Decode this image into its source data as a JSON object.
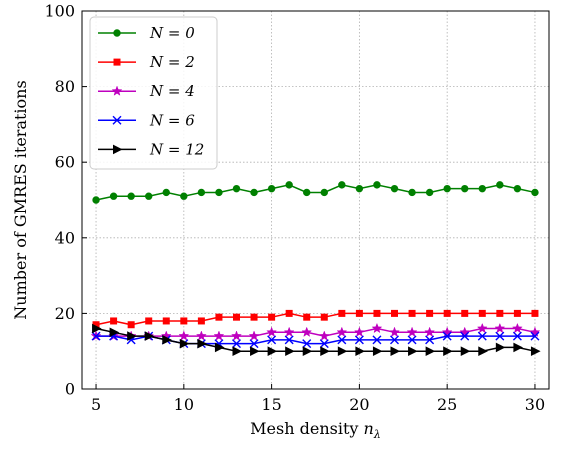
{
  "chart_data": {
    "type": "line",
    "title": "",
    "xlabel": "Mesh density nλ",
    "xlabel_main": "Mesh density ",
    "xlabel_var": "n",
    "xlabel_sub": "λ",
    "ylabel": "Number of GMRES iterations",
    "xlim": [
      4.2,
      30.8
    ],
    "ylim": [
      0,
      100
    ],
    "xticks": [
      5,
      10,
      15,
      20,
      25,
      30
    ],
    "yticks": [
      0,
      20,
      40,
      60,
      80,
      100
    ],
    "grid": true,
    "legend_position": "top-left",
    "x": [
      5,
      6,
      7,
      8,
      9,
      10,
      11,
      12,
      13,
      14,
      15,
      16,
      17,
      18,
      19,
      20,
      21,
      22,
      23,
      24,
      25,
      26,
      27,
      28,
      29,
      30
    ],
    "series": [
      {
        "name": "N = 0",
        "color": "#008000",
        "marker": "circle",
        "values": [
          50,
          51,
          51,
          51,
          52,
          51,
          52,
          52,
          53,
          52,
          53,
          54,
          52,
          52,
          54,
          53,
          54,
          53,
          52,
          52,
          53,
          53,
          53,
          54,
          53,
          52
        ]
      },
      {
        "name": "N = 2",
        "color": "#ff0000",
        "marker": "square",
        "values": [
          17,
          18,
          17,
          18,
          18,
          18,
          18,
          19,
          19,
          19,
          19,
          20,
          19,
          19,
          20,
          20,
          20,
          20,
          20,
          20,
          20,
          20,
          20,
          20,
          20,
          20
        ]
      },
      {
        "name": "N = 4",
        "color": "#bf00bf",
        "marker": "star",
        "values": [
          14,
          14,
          14,
          14,
          14,
          14,
          14,
          14,
          14,
          14,
          15,
          15,
          15,
          14,
          15,
          15,
          16,
          15,
          15,
          15,
          15,
          15,
          16,
          16,
          16,
          15
        ]
      },
      {
        "name": "N = 6",
        "color": "#0000ff",
        "marker": "x",
        "values": [
          14,
          14,
          13,
          14,
          13,
          12,
          12,
          12,
          12,
          12,
          13,
          13,
          12,
          12,
          13,
          13,
          13,
          13,
          13,
          13,
          14,
          14,
          14,
          14,
          14,
          14
        ]
      },
      {
        "name": "N = 12",
        "color": "#000000",
        "marker": "triangle-right",
        "values": [
          16,
          15,
          14,
          14,
          13,
          12,
          12,
          11,
          10,
          10,
          10,
          10,
          10,
          10,
          10,
          10,
          10,
          10,
          10,
          10,
          10,
          10,
          10,
          11,
          11,
          10
        ]
      }
    ]
  }
}
